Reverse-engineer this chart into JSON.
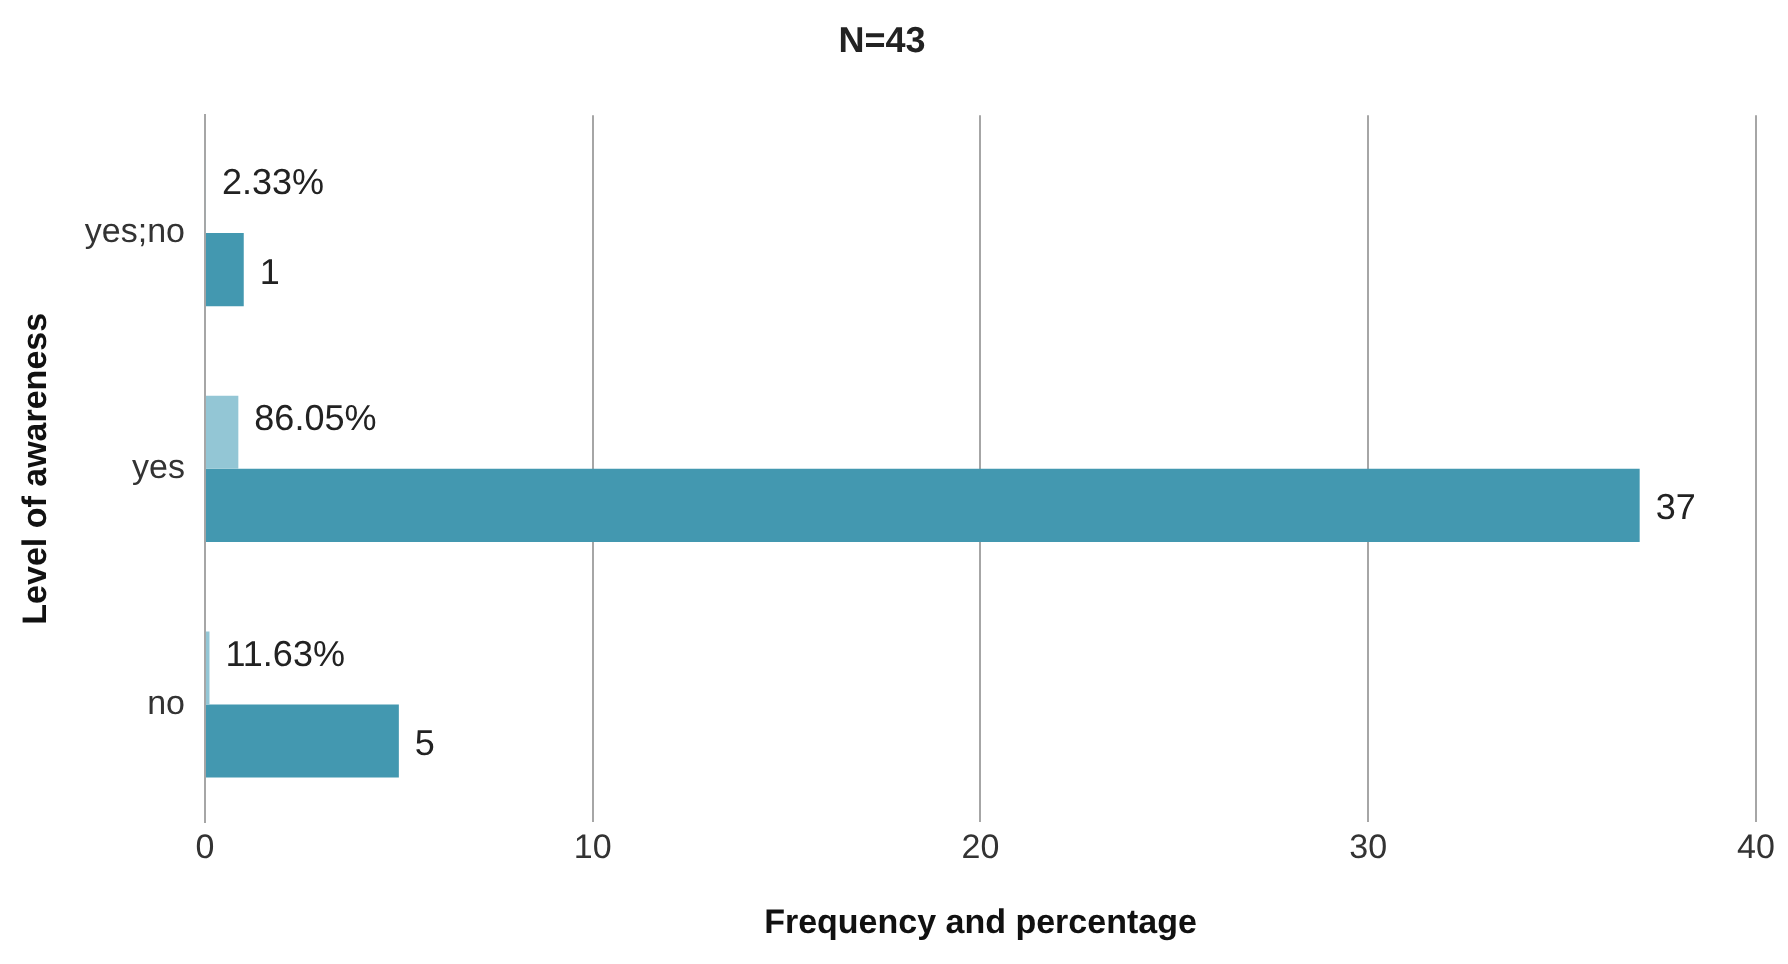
{
  "chart_data": {
    "type": "bar",
    "orientation": "horizontal",
    "title": "N=43",
    "xlabel": "Frequency and percentage",
    "ylabel": "Level of awareness",
    "categories": [
      "yes;no",
      "yes",
      "no"
    ],
    "series": [
      {
        "color": "#93c6d5",
        "values": [
          0.0233,
          0.8605,
          0.1163
        ],
        "value_labels": [
          "2.33%",
          "86.05%",
          "11.63%"
        ]
      },
      {
        "color": "#4398b0",
        "values": [
          1,
          37,
          5
        ],
        "value_labels": [
          "1",
          "37",
          "5"
        ]
      }
    ],
    "xlim": [
      0,
      40
    ],
    "xticks": [
      0,
      10,
      20,
      30,
      40
    ],
    "grid": "x",
    "legend": false
  }
}
